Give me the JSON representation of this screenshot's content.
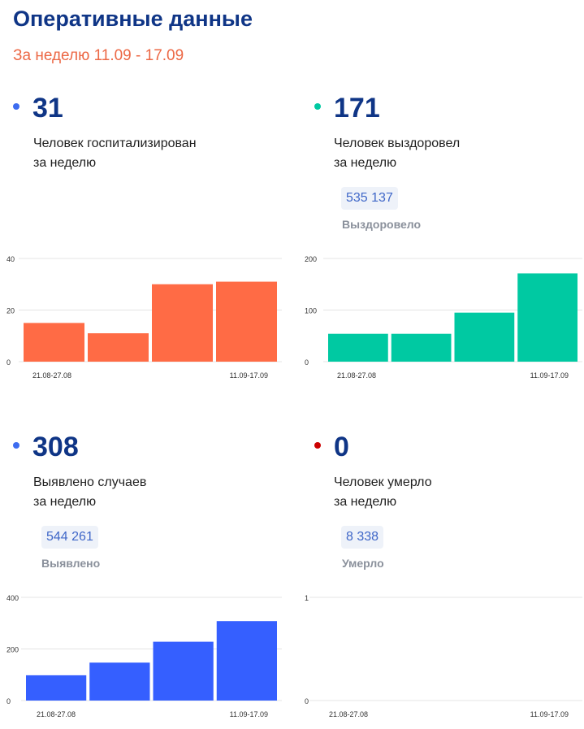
{
  "header": {
    "title": "Оперативные данные",
    "subtitle": "За неделю 11.09 - 17.09"
  },
  "colors": {
    "title": "#0f3586",
    "subtitle": "#ec6845",
    "hospitalized": "#ff6b45",
    "recovered": "#00c9a2",
    "detected": "#355fff",
    "died": "#cc0000",
    "total_text": "#3f67c8"
  },
  "cards": [
    {
      "value": "31",
      "desc_line1": "Человек госпитализирован",
      "desc_line2": "за неделю",
      "dot_color": "#3d6cf0"
    },
    {
      "value": "171",
      "desc_line1": "Человек выздоровел",
      "desc_line2": "за неделю",
      "total": "535 137",
      "total_label": "Выздоровело",
      "dot_color": "#00c9a2"
    },
    {
      "value": "308",
      "desc_line1": "Выявлено случаев",
      "desc_line2": "за неделю",
      "total": "544 261",
      "total_label": "Выявлено",
      "dot_color": "#3d6cf0"
    },
    {
      "value": "0",
      "desc_line1": "Человек умерло",
      "desc_line2": "за неделю",
      "total": "8 338",
      "total_label": "Умерло",
      "dot_color": "#cc0000"
    }
  ],
  "chart_data": [
    {
      "type": "bar",
      "categories": [
        "21.08-27.08",
        "",
        "",
        "11.09-17.09"
      ],
      "values": [
        15,
        11,
        30,
        31
      ],
      "ylim": [
        0,
        40
      ],
      "yticks": [
        0,
        20,
        40
      ],
      "color": "#ff6b45",
      "grid": true
    },
    {
      "type": "bar",
      "categories": [
        "21.08-27.08",
        "",
        "",
        "11.09-17.09"
      ],
      "values": [
        54,
        54,
        95,
        171
      ],
      "ylim": [
        0,
        200
      ],
      "yticks": [
        0,
        100,
        200
      ],
      "color": "#00c9a2",
      "grid": true
    },
    {
      "type": "bar",
      "categories": [
        "21.08-27.08",
        "",
        "",
        "11.09-17.09"
      ],
      "values": [
        98,
        147,
        228,
        308
      ],
      "ylim": [
        0,
        400
      ],
      "yticks": [
        0,
        200,
        400
      ],
      "color": "#355fff",
      "grid": true
    },
    {
      "type": "bar",
      "categories": [
        "21.08-27.08",
        "",
        "",
        "11.09-17.09"
      ],
      "values": [
        0,
        0,
        0,
        0
      ],
      "ylim": [
        0,
        1
      ],
      "yticks": [
        0,
        1
      ],
      "color": "#cc0000",
      "grid": true
    }
  ]
}
